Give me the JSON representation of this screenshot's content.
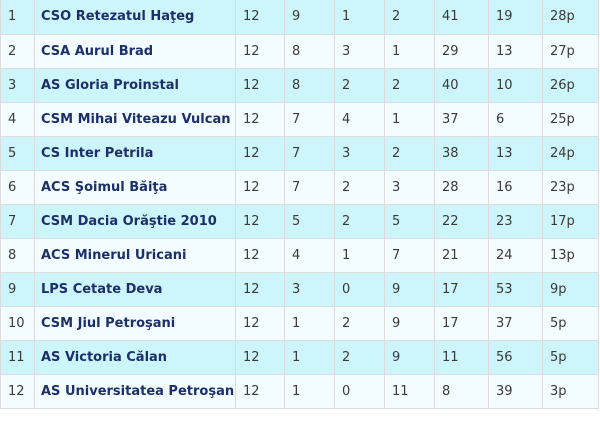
{
  "standings": {
    "rows": [
      {
        "pos": "1",
        "team": "CSO Retezatul Haţeg",
        "played": "12",
        "won": "9",
        "drawn": "1",
        "lost": "2",
        "goals_for": "41",
        "goals_against": "19",
        "points": "28p"
      },
      {
        "pos": "2",
        "team": "CSA Aurul Brad",
        "played": "12",
        "won": "8",
        "drawn": "3",
        "lost": "1",
        "goals_for": "29",
        "goals_against": "13",
        "points": "27p"
      },
      {
        "pos": "3",
        "team": "AS Gloria Proinstal",
        "played": "12",
        "won": "8",
        "drawn": "2",
        "lost": "2",
        "goals_for": "40",
        "goals_against": "10",
        "points": "26p"
      },
      {
        "pos": "4",
        "team": "CSM Mihai Viteazu Vulcan",
        "played": "12",
        "won": "7",
        "drawn": "4",
        "lost": "1",
        "goals_for": "37",
        "goals_against": "6",
        "points": "25p"
      },
      {
        "pos": "5",
        "team": "CS Inter Petrila",
        "played": "12",
        "won": "7",
        "drawn": "3",
        "lost": "2",
        "goals_for": "38",
        "goals_against": "13",
        "points": "24p"
      },
      {
        "pos": "6",
        "team": "ACS Şoimul Băiţa",
        "played": "12",
        "won": "7",
        "drawn": "2",
        "lost": "3",
        "goals_for": "28",
        "goals_against": "16",
        "points": "23p"
      },
      {
        "pos": "7",
        "team": "CSM Dacia Orăştie 2010",
        "played": "12",
        "won": "5",
        "drawn": "2",
        "lost": "5",
        "goals_for": "22",
        "goals_against": "23",
        "points": "17p"
      },
      {
        "pos": "8",
        "team": "ACS Minerul Uricani",
        "played": "12",
        "won": "4",
        "drawn": "1",
        "lost": "7",
        "goals_for": "21",
        "goals_against": "24",
        "points": "13p"
      },
      {
        "pos": "9",
        "team": "LPS Cetate Deva",
        "played": "12",
        "won": "3",
        "drawn": "0",
        "lost": "9",
        "goals_for": "17",
        "goals_against": "53",
        "points": "9p"
      },
      {
        "pos": "10",
        "team": "CSM Jiul Petroşani",
        "played": "12",
        "won": "1",
        "drawn": "2",
        "lost": "9",
        "goals_for": "17",
        "goals_against": "37",
        "points": "5p"
      },
      {
        "pos": "11",
        "team": "AS Victoria Călan",
        "played": "12",
        "won": "1",
        "drawn": "2",
        "lost": "9",
        "goals_for": "11",
        "goals_against": "56",
        "points": "5p"
      },
      {
        "pos": "12",
        "team": "AS Universitatea Petroşani",
        "played": "12",
        "won": "1",
        "drawn": "0",
        "lost": "11",
        "goals_for": "8",
        "goals_against": "39",
        "points": "3p"
      }
    ]
  }
}
